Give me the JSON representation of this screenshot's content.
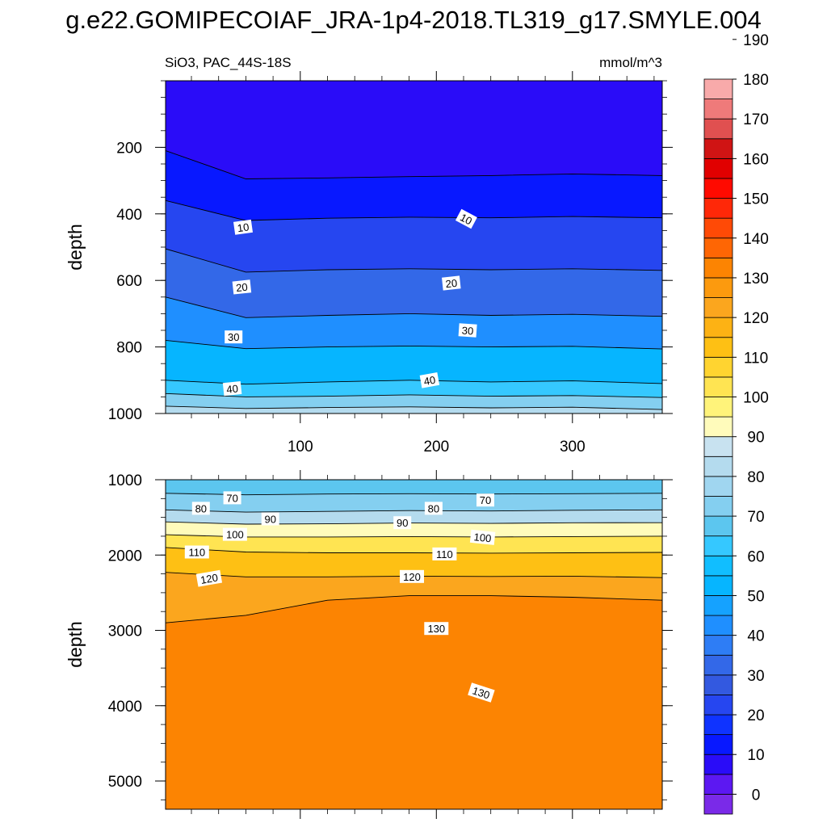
{
  "title": "g.e22.GOMIPECOIAF_JRA-1p4-2018.TL319_g17.SMYLE.004",
  "chart_data": {
    "type": "contour",
    "variable": "SiO3",
    "region": "PAC_44S-18S",
    "units": "mmol/m^3",
    "xlabel": "",
    "xlim": [
      1,
      366
    ],
    "x_ticks": [
      100,
      200,
      300
    ],
    "ylabel": "depth",
    "panels": [
      {
        "name": "upper",
        "ylim": [
          0,
          1000
        ],
        "y_ticks": [
          200,
          400,
          600,
          800,
          1000
        ],
        "x_tick_labels_shown": true,
        "x": [
          1,
          60,
          120,
          180,
          240,
          300,
          366
        ],
        "contours": [
          {
            "level": 10,
            "depth": [
              210,
              295,
              292,
              288,
              285,
              280,
              285
            ]
          },
          {
            "level": 20,
            "depth": [
              360,
              420,
              413,
              410,
              412,
              408,
              412
            ]
          },
          {
            "level": 30,
            "depth": [
              505,
              575,
              568,
              565,
              568,
              565,
              570
            ]
          },
          {
            "level": 40,
            "depth": [
              650,
              712,
              705,
              700,
              705,
              702,
              708
            ]
          },
          {
            "level": 50,
            "depth": [
              780,
              805,
              800,
              797,
              800,
              798,
              806
            ]
          },
          {
            "level": 60,
            "depth": [
              900,
              912,
              905,
              900,
              905,
              902,
              910
            ]
          },
          {
            "level": 70,
            "depth": [
              940,
              950,
              948,
              944,
              948,
              946,
              952
            ]
          },
          {
            "level": 80,
            "depth": [
              978,
              985,
              982,
              980,
              983,
              981,
              988
            ]
          }
        ],
        "labels": [
          {
            "text": "10",
            "x": 58,
            "depth": 440,
            "angle": -8
          },
          {
            "text": "10",
            "x": 222,
            "depth": 415,
            "angle": 28
          },
          {
            "text": "20",
            "x": 57,
            "depth": 620,
            "angle": -6
          },
          {
            "text": "20",
            "x": 211,
            "depth": 608,
            "angle": -6
          },
          {
            "text": "30",
            "x": 51,
            "depth": 770,
            "angle": 0
          },
          {
            "text": "30",
            "x": 223,
            "depth": 750,
            "angle": 4
          },
          {
            "text": "40",
            "x": 50,
            "depth": 925,
            "angle": -6
          },
          {
            "text": "40",
            "x": 195,
            "depth": 900,
            "angle": -10
          }
        ]
      },
      {
        "name": "lower",
        "ylim": [
          1000,
          5375
        ],
        "y_ticks": [
          1000,
          2000,
          3000,
          4000,
          5000
        ],
        "x_tick_labels_shown": false,
        "x": [
          1,
          60,
          120,
          180,
          240,
          300,
          366
        ],
        "contours": [
          {
            "level": 70,
            "depth": [
              1180,
              1200,
              1190,
              1185,
              1190,
              1185,
              1180
            ]
          },
          {
            "level": 80,
            "depth": [
              1400,
              1430,
              1420,
              1410,
              1415,
              1405,
              1400
            ]
          },
          {
            "level": 90,
            "depth": [
              1560,
              1590,
              1585,
              1575,
              1580,
              1572,
              1570
            ]
          },
          {
            "level": 100,
            "depth": [
              1730,
              1760,
              1760,
              1755,
              1760,
              1755,
              1750
            ]
          },
          {
            "level": 110,
            "depth": [
              1900,
              1960,
              1970,
              1970,
              1975,
              1970,
              1965
            ]
          },
          {
            "level": 120,
            "depth": [
              2230,
              2290,
              2290,
              2280,
              2285,
              2280,
              2300
            ]
          },
          {
            "level": 130,
            "depth": [
              2900,
              2800,
              2600,
              2540,
              2540,
              2560,
              2600
            ]
          }
        ],
        "labels": [
          {
            "text": "70",
            "x": 50,
            "depth": 1240,
            "angle": 0
          },
          {
            "text": "70",
            "x": 236,
            "depth": 1270,
            "angle": 0
          },
          {
            "text": "80",
            "x": 27,
            "depth": 1380,
            "angle": 0
          },
          {
            "text": "80",
            "x": 198,
            "depth": 1380,
            "angle": 0
          },
          {
            "text": "90",
            "x": 78,
            "depth": 1520,
            "angle": 0
          },
          {
            "text": "90",
            "x": 175,
            "depth": 1570,
            "angle": 0
          },
          {
            "text": "100",
            "x": 52,
            "depth": 1725,
            "angle": 0
          },
          {
            "text": "100",
            "x": 234,
            "depth": 1765,
            "angle": 6
          },
          {
            "text": "110",
            "x": 24,
            "depth": 1960,
            "angle": 0
          },
          {
            "text": "110",
            "x": 206,
            "depth": 1985,
            "angle": 0
          },
          {
            "text": "120",
            "x": 33,
            "depth": 2310,
            "angle": -10
          },
          {
            "text": "120",
            "x": 182,
            "depth": 2285,
            "angle": 0
          },
          {
            "text": "130",
            "x": 200,
            "depth": 2975,
            "angle": 0
          },
          {
            "text": "130",
            "x": 233,
            "depth": 3825,
            "angle": 18
          }
        ]
      }
    ],
    "colorbar": {
      "ticks": [
        0,
        10,
        20,
        30,
        40,
        50,
        60,
        70,
        80,
        90,
        100,
        110,
        120,
        130,
        140,
        150,
        160,
        170,
        180,
        190
      ],
      "colors": [
        "#7A2AE8",
        "#5C18F2",
        "#2A0CF8",
        "#0818FF",
        "#0F33FF",
        "#2646F0",
        "#3359E0",
        "#3368E8",
        "#2E7DF5",
        "#1F8FFF",
        "#15A2FF",
        "#06B5FF",
        "#11BEFF",
        "#35C8FF",
        "#5CC6EF",
        "#84CFF0",
        "#A0D6F0",
        "#B4DBEE",
        "#C8E2F0",
        "#FFFBBB",
        "#FFF37A",
        "#FFE452",
        "#FFD430",
        "#FEC014",
        "#FDB214",
        "#FBA61E",
        "#FC9A0E",
        "#FC8402",
        "#FE6604",
        "#FF4A06",
        "#FF2808",
        "#FF0A00",
        "#E10000",
        "#D01414",
        "#E05050",
        "#EF7A7A",
        "#F8AAAA"
      ]
    }
  }
}
